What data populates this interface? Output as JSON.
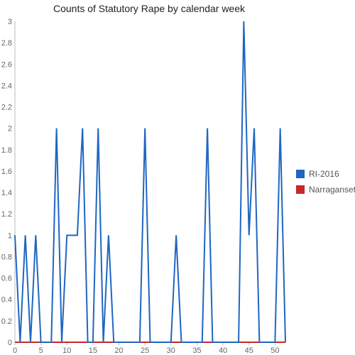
{
  "chart_data": {
    "type": "line",
    "title": "Counts of Statutory Rape by calendar week",
    "xlabel": "",
    "ylabel": "",
    "xlim": [
      0,
      52
    ],
    "ylim": [
      0,
      3
    ],
    "x_ticks": [
      0,
      5,
      10,
      15,
      20,
      25,
      30,
      35,
      40,
      45,
      50
    ],
    "y_ticks": [
      0,
      0.2,
      0.4,
      0.6,
      0.8,
      1,
      1.2,
      1.4,
      1.6,
      1.8,
      2,
      2.2,
      2.4,
      2.6,
      2.8,
      3
    ],
    "grid": false,
    "legend_position": "right",
    "series": [
      {
        "name": "RI-2016",
        "color": "#1f66c2",
        "x": [
          0,
          1,
          2,
          3,
          4,
          5,
          6,
          7,
          8,
          9,
          10,
          11,
          12,
          13,
          14,
          15,
          16,
          17,
          18,
          19,
          20,
          21,
          22,
          23,
          24,
          25,
          26,
          27,
          28,
          29,
          30,
          31,
          32,
          33,
          34,
          35,
          36,
          37,
          38,
          39,
          40,
          41,
          42,
          43,
          44,
          45,
          46,
          47,
          48,
          49,
          50,
          51,
          52
        ],
        "values": [
          1,
          0,
          1,
          0,
          1,
          0,
          0,
          0,
          2,
          0,
          1,
          1,
          1,
          2,
          0,
          0,
          2,
          0,
          1,
          0,
          0,
          0,
          0,
          0,
          0,
          2,
          0,
          0,
          0,
          0,
          0,
          1,
          0,
          0,
          0,
          0,
          0,
          2,
          0,
          0,
          0,
          0,
          0,
          0,
          3,
          1,
          2,
          0,
          0,
          0,
          0,
          2,
          0
        ]
      },
      {
        "name": "Narragansett",
        "color": "#c62828",
        "x": [
          0,
          1,
          2,
          3,
          4,
          5,
          6,
          7,
          8,
          9,
          10,
          11,
          12,
          13,
          14,
          15,
          16,
          17,
          18,
          19,
          20,
          21,
          22,
          23,
          24,
          25,
          26,
          27,
          28,
          29,
          30,
          31,
          32,
          33,
          34,
          35,
          36,
          37,
          38,
          39,
          40,
          41,
          42,
          43,
          44,
          45,
          46,
          47,
          48,
          49,
          50,
          51,
          52
        ],
        "values": [
          0,
          0,
          0,
          0,
          0,
          0,
          0,
          0,
          0,
          0,
          0,
          0,
          0,
          0,
          0,
          0,
          0,
          0,
          0,
          0,
          0,
          0,
          0,
          0,
          0,
          0,
          0,
          0,
          0,
          0,
          0,
          0,
          0,
          0,
          0,
          0,
          0,
          0,
          0,
          0,
          0,
          0,
          0,
          0,
          0,
          0,
          0,
          0,
          0,
          0,
          0,
          0,
          0
        ]
      }
    ]
  }
}
